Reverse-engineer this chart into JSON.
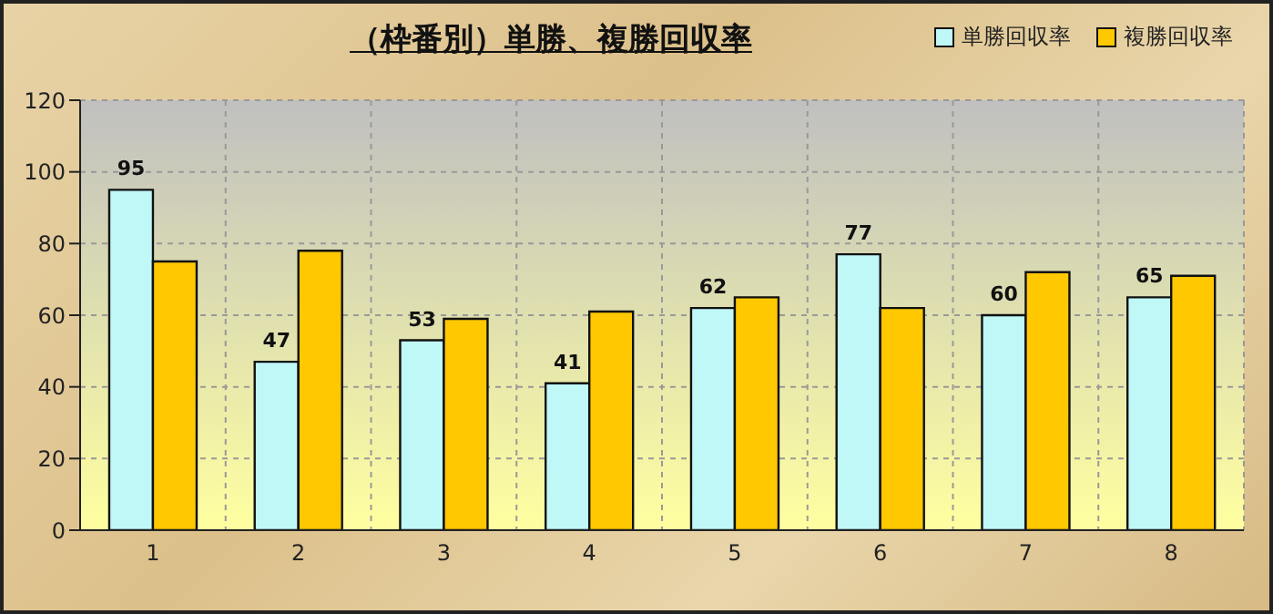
{
  "chart_data": {
    "type": "bar",
    "title": "（枠番別）単勝、複勝回収率",
    "categories": [
      "1",
      "2",
      "3",
      "4",
      "5",
      "6",
      "7",
      "8"
    ],
    "series": [
      {
        "name": "単勝回収率",
        "color": "#c0f8f8",
        "values": [
          95,
          47,
          53,
          41,
          62,
          77,
          60,
          65
        ],
        "value_labels": [
          "95",
          "47",
          "53",
          "41",
          "62",
          "77",
          "60",
          "65"
        ]
      },
      {
        "name": "複勝回収率",
        "color": "#ffc800",
        "values": [
          75,
          78,
          59,
          61,
          65,
          62,
          72,
          71
        ]
      }
    ],
    "ylim": [
      0,
      120
    ],
    "yticks": [
      0,
      20,
      40,
      60,
      80,
      100,
      120
    ],
    "grid": true,
    "legend": "top right"
  }
}
